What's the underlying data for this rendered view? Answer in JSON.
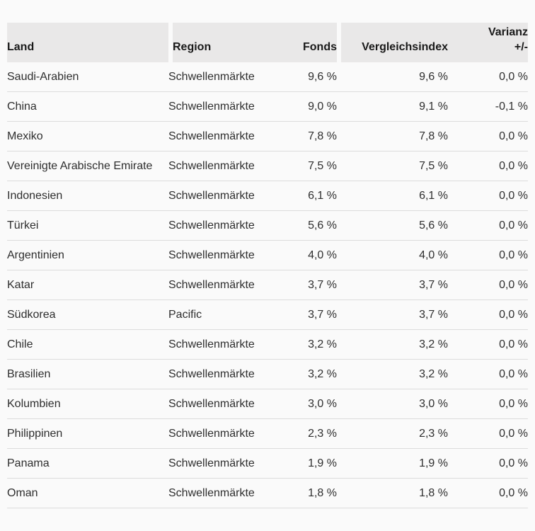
{
  "colors": {
    "page_background": "#fafafa",
    "header_background": "#e9e8e8",
    "row_divider": "#dcdcdc",
    "header_text": "#1a1a1a",
    "body_text": "#2e2e2e",
    "negative_value": "#b6404f"
  },
  "table": {
    "columns": [
      {
        "key": "land",
        "label": "Land"
      },
      {
        "key": "region",
        "label": "Region"
      },
      {
        "key": "fonds",
        "label": "Fonds"
      },
      {
        "key": "vergleichsindex",
        "label": "Vergleichsindex"
      },
      {
        "key": "varianz",
        "label": "Varianz",
        "label2": "+/-"
      }
    ],
    "rows": [
      {
        "land": "Saudi-Arabien",
        "region": "Schwellenmärkte",
        "fonds": "9,6 %",
        "vergleichsindex": "9,6 %",
        "varianz": "0,0 %",
        "varianz_negative": false
      },
      {
        "land": "China",
        "region": "Schwellenmärkte",
        "fonds": "9,0 %",
        "vergleichsindex": "9,1 %",
        "varianz": "-0,1 %",
        "varianz_negative": true
      },
      {
        "land": "Mexiko",
        "region": "Schwellenmärkte",
        "fonds": "7,8 %",
        "vergleichsindex": "7,8 %",
        "varianz": "0,0 %",
        "varianz_negative": false
      },
      {
        "land": "Vereinigte Arabische Emirate",
        "region": "Schwellenmärkte",
        "fonds": "7,5 %",
        "vergleichsindex": "7,5 %",
        "varianz": "0,0 %",
        "varianz_negative": false
      },
      {
        "land": "Indonesien",
        "region": "Schwellenmärkte",
        "fonds": "6,1 %",
        "vergleichsindex": "6,1 %",
        "varianz": "0,0 %",
        "varianz_negative": false
      },
      {
        "land": "Türkei",
        "region": "Schwellenmärkte",
        "fonds": "5,6 %",
        "vergleichsindex": "5,6 %",
        "varianz": "0,0 %",
        "varianz_negative": false
      },
      {
        "land": "Argentinien",
        "region": "Schwellenmärkte",
        "fonds": "4,0 %",
        "vergleichsindex": "4,0 %",
        "varianz": "0,0 %",
        "varianz_negative": false
      },
      {
        "land": "Katar",
        "region": "Schwellenmärkte",
        "fonds": "3,7 %",
        "vergleichsindex": "3,7 %",
        "varianz": "0,0 %",
        "varianz_negative": false
      },
      {
        "land": "Südkorea",
        "region": "Pacific",
        "fonds": "3,7 %",
        "vergleichsindex": "3,7 %",
        "varianz": "0,0 %",
        "varianz_negative": false
      },
      {
        "land": "Chile",
        "region": "Schwellenmärkte",
        "fonds": "3,2 %",
        "vergleichsindex": "3,2 %",
        "varianz": "0,0 %",
        "varianz_negative": false
      },
      {
        "land": "Brasilien",
        "region": "Schwellenmärkte",
        "fonds": "3,2 %",
        "vergleichsindex": "3,2 %",
        "varianz": "0,0 %",
        "varianz_negative": false
      },
      {
        "land": "Kolumbien",
        "region": "Schwellenmärkte",
        "fonds": "3,0 %",
        "vergleichsindex": "3,0 %",
        "varianz": "0,0 %",
        "varianz_negative": false
      },
      {
        "land": "Philippinen",
        "region": "Schwellenmärkte",
        "fonds": "2,3 %",
        "vergleichsindex": "2,3 %",
        "varianz": "0,0 %",
        "varianz_negative": false
      },
      {
        "land": "Panama",
        "region": "Schwellenmärkte",
        "fonds": "1,9 %",
        "vergleichsindex": "1,9 %",
        "varianz": "0,0 %",
        "varianz_negative": false
      },
      {
        "land": "Oman",
        "region": "Schwellenmärkte",
        "fonds": "1,8 %",
        "vergleichsindex": "1,8 %",
        "varianz": "0,0 %",
        "varianz_negative": false
      }
    ]
  }
}
